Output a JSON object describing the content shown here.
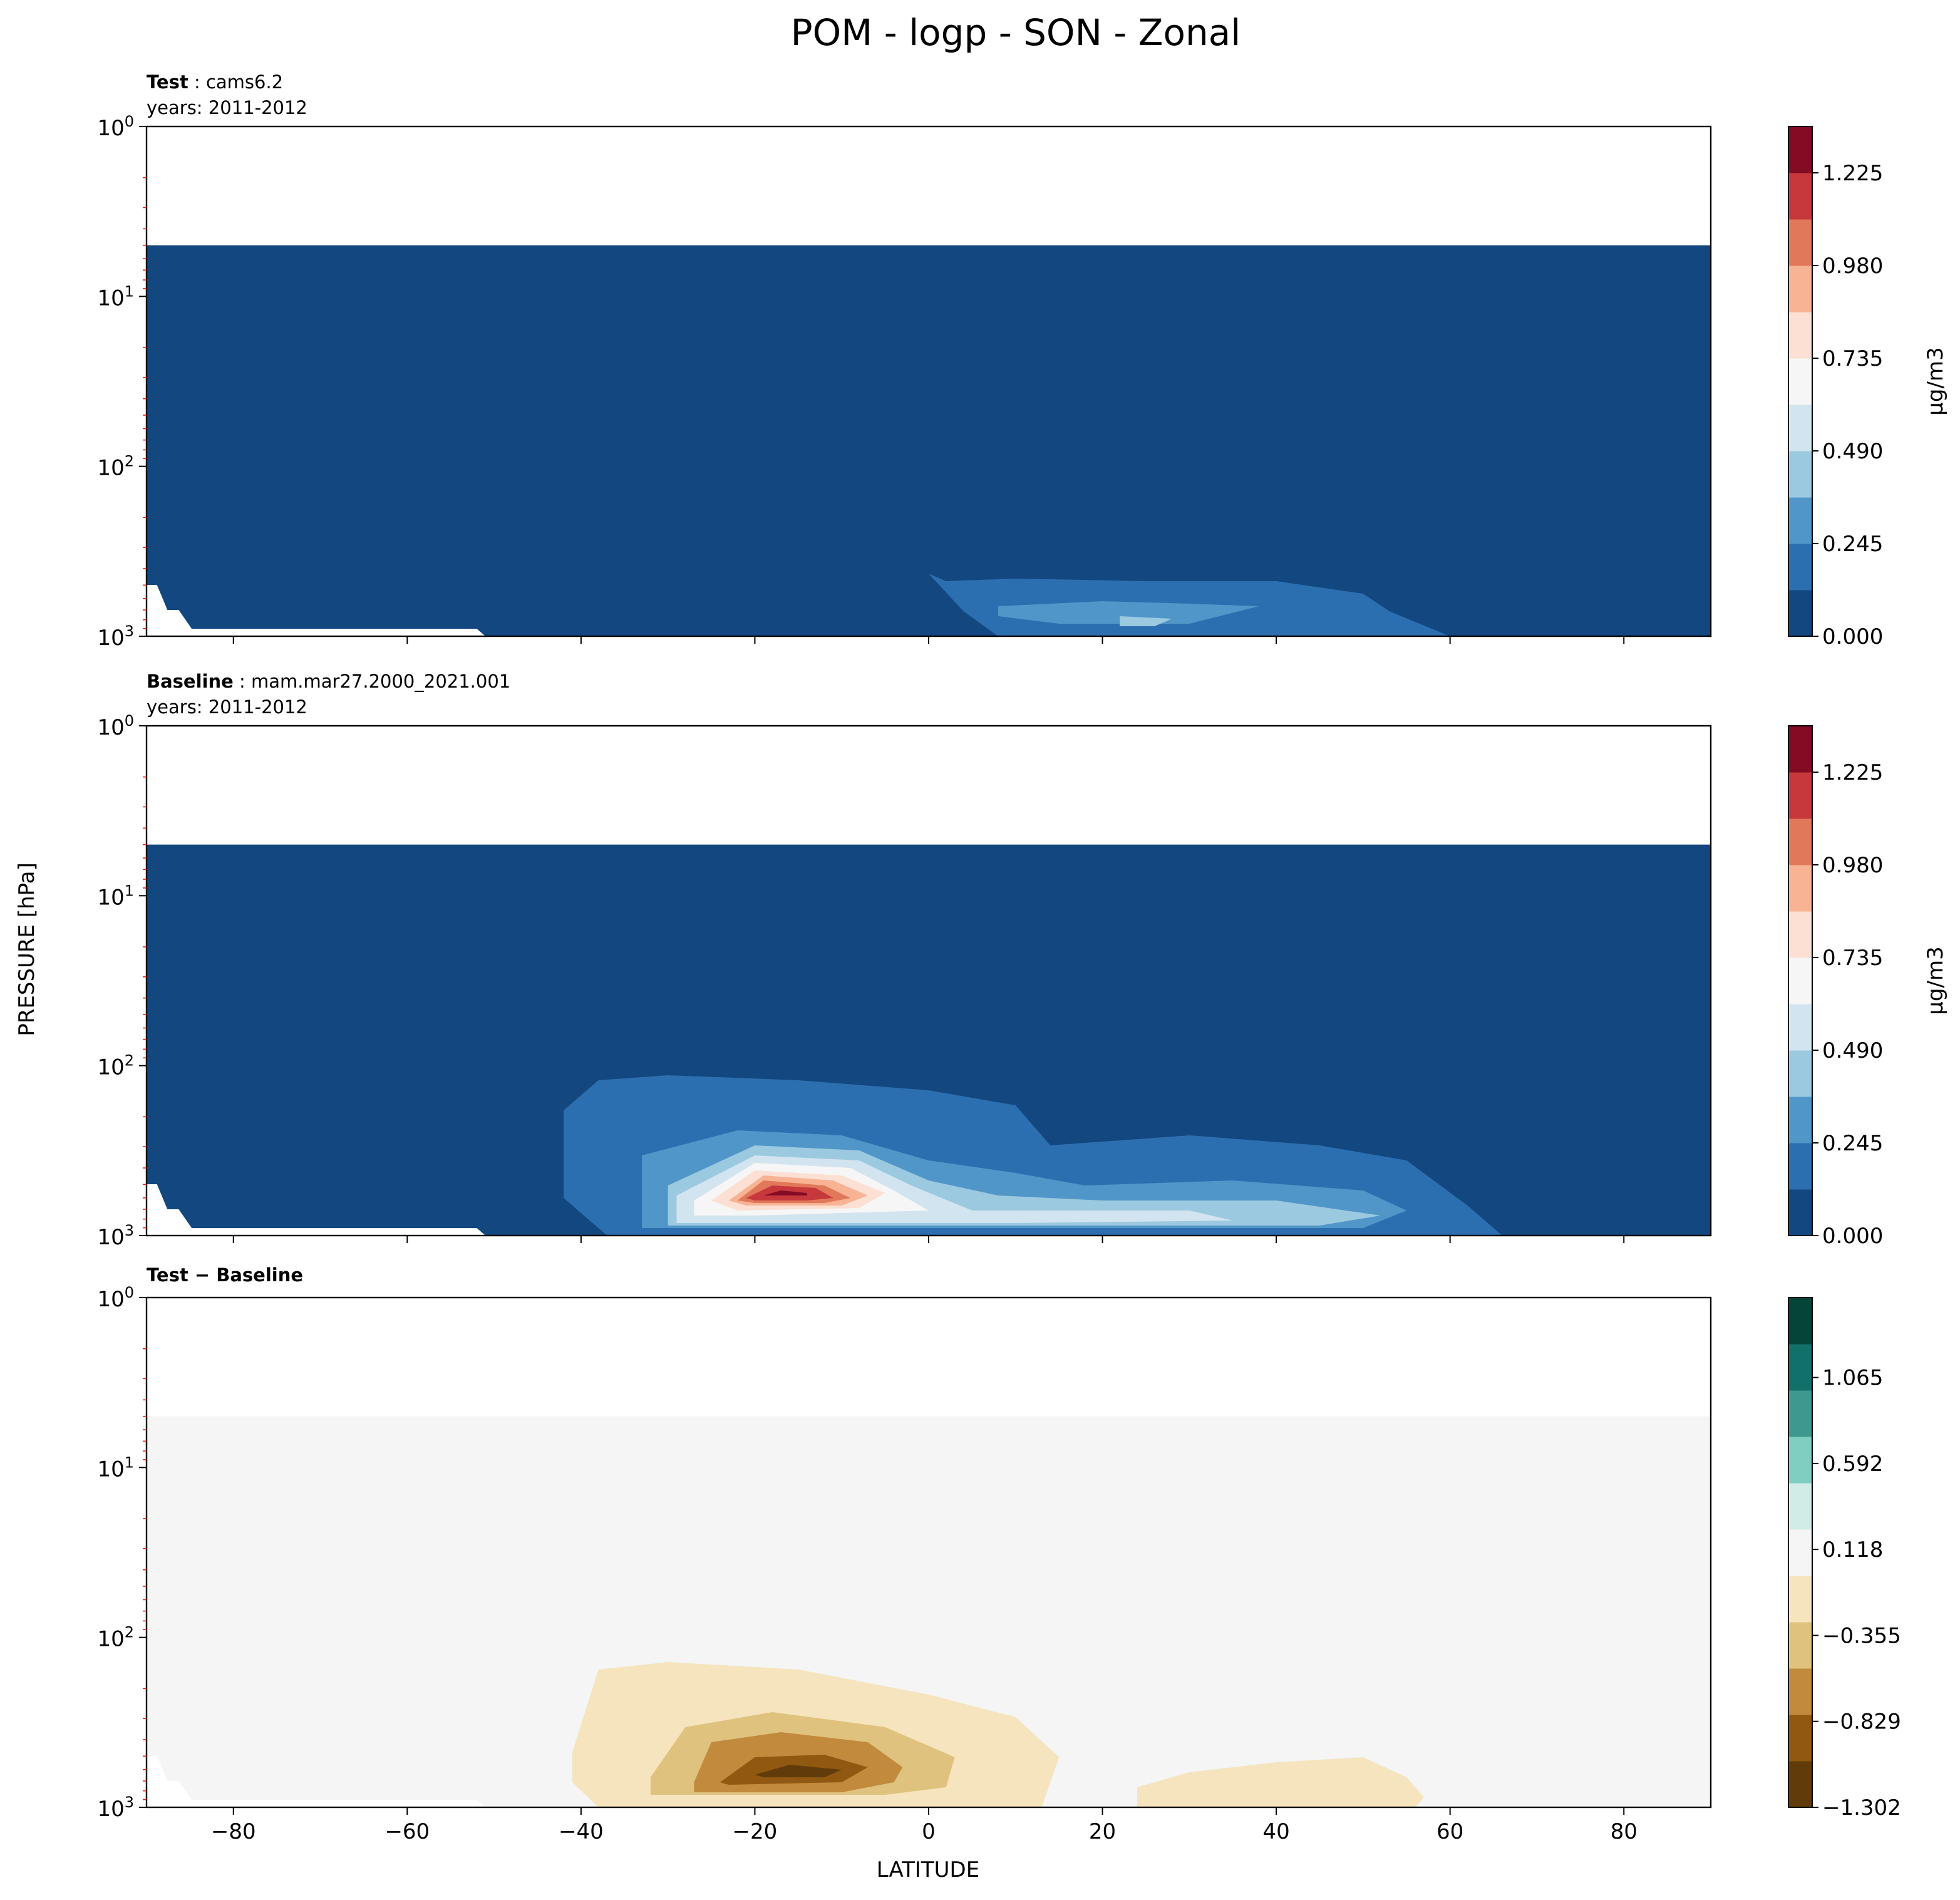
{
  "figure": {
    "title": "POM - logp - SON - Zonal",
    "ylabel": "PRESSURE [hPa]",
    "xlabel": "LATITUDE"
  },
  "chart_data": [
    {
      "type": "heatmap",
      "panel": "test",
      "title_bold": "Test",
      "title_rest": ": cams6.2",
      "subtitle": "years: 2011-2012",
      "x": {
        "label": "LATITUDE",
        "lim": [
          -90,
          90
        ],
        "ticks": [
          -80,
          -60,
          -40,
          -20,
          0,
          20,
          40,
          60,
          80
        ]
      },
      "y": {
        "label": "PRESSURE [hPa]",
        "scale": "log",
        "inverted": true,
        "lim": [
          1,
          1000
        ],
        "ticks": [
          "10^0",
          "10^1",
          "10^2",
          "10^3"
        ],
        "data_top_hPa": 5
      },
      "colorbar": {
        "cmap": "RdBu_r",
        "label": "μg/m3",
        "ticks": [
          "0.000",
          "0.245",
          "0.490",
          "0.735",
          "0.980",
          "1.225"
        ],
        "levels": [
          0.0,
          0.1225,
          0.245,
          0.3675,
          0.49,
          0.6125,
          0.735,
          0.8575,
          0.98,
          1.1025,
          1.225,
          1.3475
        ],
        "colors": [
          "#134780",
          "#2c6fb0",
          "#5096c8",
          "#9bc9e0",
          "#d1e4f0",
          "#f6f6f6",
          "#fbe0d3",
          "#f7b393",
          "#e17859",
          "#c6383c",
          "#830b24"
        ]
      },
      "fields": [
        {
          "level": 0.1225,
          "outline": [
            [
              0,
              -25
            ],
            [
              2,
              -22
            ],
            [
              10,
              -23
            ],
            [
              25,
              -22
            ],
            [
              40,
              -22
            ],
            [
              50,
              -17
            ],
            [
              53,
              -10
            ],
            [
              60,
              0
            ],
            [
              50,
              0
            ],
            [
              20,
              0
            ],
            [
              8,
              0
            ],
            [
              4,
              -10
            ]
          ]
        },
        {
          "level": 0.245,
          "outline": [
            [
              8,
              -12
            ],
            [
              20,
              -14
            ],
            [
              30,
              -13
            ],
            [
              38,
              -12
            ],
            [
              30,
              -5
            ],
            [
              15,
              -5
            ],
            [
              8,
              -8
            ]
          ]
        },
        {
          "level": 0.3675,
          "outline": [
            [
              22,
              -8
            ],
            [
              28,
              -7
            ],
            [
              26,
              -4
            ],
            [
              22,
              -4
            ]
          ]
        }
      ]
    },
    {
      "type": "heatmap",
      "panel": "baseline",
      "title_bold": "Baseline",
      "title_rest": ": mam.mar27.2000_2021.001",
      "subtitle": "years: 2011-2012",
      "x": {
        "label": "LATITUDE",
        "lim": [
          -90,
          90
        ],
        "ticks": [
          -80,
          -60,
          -40,
          -20,
          0,
          20,
          40,
          60,
          80
        ]
      },
      "y": {
        "label": "PRESSURE [hPa]",
        "scale": "log",
        "inverted": true,
        "lim": [
          1,
          1000
        ],
        "ticks": [
          "10^0",
          "10^1",
          "10^2",
          "10^3"
        ],
        "data_top_hPa": 5
      },
      "colorbar": {
        "cmap": "RdBu_r",
        "label": "μg/m3",
        "ticks": [
          "0.000",
          "0.245",
          "0.490",
          "0.735",
          "0.980",
          "1.225"
        ],
        "levels": [
          0.0,
          0.1225,
          0.245,
          0.3675,
          0.49,
          0.6125,
          0.735,
          0.8575,
          0.98,
          1.1025,
          1.225,
          1.3475
        ],
        "colors": [
          "#134780",
          "#2c6fb0",
          "#5096c8",
          "#9bc9e0",
          "#d1e4f0",
          "#f6f6f6",
          "#fbe0d3",
          "#f7b393",
          "#e17859",
          "#c6383c",
          "#830b24"
        ]
      },
      "fields": [
        {
          "level": 0.1225,
          "outline": [
            [
              -42,
              -50
            ],
            [
              -38,
              -62
            ],
            [
              -30,
              -64
            ],
            [
              -15,
              -62
            ],
            [
              0,
              -58
            ],
            [
              10,
              -52
            ],
            [
              14,
              -36
            ],
            [
              30,
              -40
            ],
            [
              45,
              -36
            ],
            [
              55,
              -30
            ],
            [
              62,
              -12
            ],
            [
              66,
              0
            ],
            [
              -37,
              0
            ],
            [
              -42,
              -15
            ]
          ]
        },
        {
          "level": 0.245,
          "outline": [
            [
              -33,
              -32
            ],
            [
              -22,
              -42
            ],
            [
              -10,
              -40
            ],
            [
              0,
              -30
            ],
            [
              10,
              -25
            ],
            [
              18,
              -20
            ],
            [
              35,
              -22
            ],
            [
              50,
              -18
            ],
            [
              55,
              -10
            ],
            [
              50,
              -3
            ],
            [
              -33,
              -3
            ]
          ]
        },
        {
          "level": 0.3675,
          "outline": [
            [
              -30,
              -20
            ],
            [
              -20,
              -36
            ],
            [
              -8,
              -34
            ],
            [
              0,
              -22
            ],
            [
              8,
              -16
            ],
            [
              20,
              -14
            ],
            [
              40,
              -14
            ],
            [
              52,
              -8
            ],
            [
              45,
              -4
            ],
            [
              -30,
              -4
            ]
          ]
        },
        {
          "level": 0.49,
          "outline": [
            [
              -29,
              -16
            ],
            [
              -20,
              -32
            ],
            [
              -8,
              -30
            ],
            [
              -2,
              -20
            ],
            [
              5,
              -10
            ],
            [
              20,
              -10
            ],
            [
              30,
              -10
            ],
            [
              35,
              -6
            ],
            [
              10,
              -5
            ],
            [
              -29,
              -5
            ]
          ]
        },
        {
          "level": 0.6125,
          "outline": [
            [
              -27,
              -14
            ],
            [
              -20,
              -29
            ],
            [
              -9,
              -27
            ],
            [
              -4,
              -18
            ],
            [
              0,
              -10
            ],
            [
              -20,
              -8
            ],
            [
              -27,
              -8
            ]
          ]
        },
        {
          "level": 0.735,
          "outline": [
            [
              -25,
              -14
            ],
            [
              -20,
              -26
            ],
            [
              -10,
              -24
            ],
            [
              -5,
              -17
            ],
            [
              -8,
              -11
            ],
            [
              -22,
              -10
            ]
          ]
        },
        {
          "level": 0.8575,
          "outline": [
            [
              -23,
              -14
            ],
            [
              -19,
              -24
            ],
            [
              -11,
              -22
            ],
            [
              -7,
              -16
            ],
            [
              -10,
              -12
            ],
            [
              -21,
              -12
            ]
          ]
        },
        {
          "level": 0.98,
          "outline": [
            [
              -22,
              -14
            ],
            [
              -19,
              -22
            ],
            [
              -12,
              -20
            ],
            [
              -9,
              -15
            ],
            [
              -12,
              -13
            ],
            [
              -20,
              -13
            ]
          ]
        },
        {
          "level": 1.1025,
          "outline": [
            [
              -21,
              -15
            ],
            [
              -18,
              -20
            ],
            [
              -13,
              -19
            ],
            [
              -11,
              -15
            ],
            [
              -14,
              -14
            ],
            [
              -20,
              -14
            ]
          ]
        },
        {
          "level": 1.225,
          "outline": [
            [
              -19,
              -16
            ],
            [
              -17,
              -18
            ],
            [
              -14,
              -17
            ],
            [
              -14,
              -16
            ]
          ]
        }
      ]
    },
    {
      "type": "heatmap",
      "panel": "difference",
      "title_bold": "Test − Baseline",
      "title_rest": "",
      "subtitle": "",
      "x": {
        "label": "LATITUDE",
        "lim": [
          -90,
          90
        ],
        "ticks": [
          -80,
          -60,
          -40,
          -20,
          0,
          20,
          40,
          60,
          80
        ]
      },
      "y": {
        "label": "PRESSURE [hPa]",
        "scale": "log",
        "inverted": true,
        "lim": [
          1,
          1000
        ],
        "ticks": [
          "10^0",
          "10^1",
          "10^2",
          "10^3"
        ],
        "data_top_hPa": 5
      },
      "colorbar": {
        "cmap": "BrBG",
        "label": "",
        "ticks": [
          "−1.302",
          "−0.829",
          "−0.355",
          "0.118",
          "0.592",
          "1.065"
        ],
        "levels": [
          -1.302,
          -1.1443,
          -0.9867,
          -0.829,
          -0.6713,
          -0.5137,
          -0.355,
          -0.1973,
          -0.0397,
          0.118,
          0.2757,
          0.4333,
          0.592,
          0.7497,
          0.9073,
          1.065,
          1.2227
        ],
        "colors": [
          "#613c0a",
          "#905811",
          "#c18a3d",
          "#dfc27d",
          "#f5e4bd",
          "#f4f5f4",
          "#f4f5f4",
          "#f4f5f4",
          "#f4f5f4",
          "#d1ece7",
          "#80cdc1",
          "#3f9890",
          "#12706a",
          "#0a5a4e",
          "#04453a",
          "#003c30"
        ],
        "band_colors": [
          "#613c0a",
          "#905811",
          "#c18a3d",
          "#dfc27d",
          "#f5e4bd",
          "#f4f5f4",
          "#d1ece7",
          "#80cdc1",
          "#3f9890",
          "#12706a",
          "#04453a"
        ]
      },
      "fields": [
        {
          "level": -0.1973,
          "outline": [
            [
              -41,
              -22
            ],
            [
              -38,
              -55
            ],
            [
              -30,
              -58
            ],
            [
              -15,
              -55
            ],
            [
              0,
              -45
            ],
            [
              10,
              -36
            ],
            [
              15,
              -20
            ],
            [
              13,
              0
            ],
            [
              -38,
              0
            ],
            [
              -41,
              -10
            ]
          ]
        },
        {
          "level": -0.1973,
          "outline": [
            [
              24,
              -8
            ],
            [
              30,
              -14
            ],
            [
              40,
              -18
            ],
            [
              50,
              -20
            ],
            [
              55,
              -12
            ],
            [
              57,
              -4
            ],
            [
              56,
              0
            ],
            [
              24,
              0
            ]
          ]
        },
        {
          "level": -0.5137,
          "outline": [
            [
              -32,
              -12
            ],
            [
              -28,
              -32
            ],
            [
              -18,
              -38
            ],
            [
              -5,
              -32
            ],
            [
              3,
              -20
            ],
            [
              2,
              -8
            ],
            [
              -5,
              -5
            ],
            [
              -32,
              -5
            ]
          ]
        },
        {
          "level": -0.829,
          "outline": [
            [
              -27,
              -10
            ],
            [
              -25,
              -26
            ],
            [
              -17,
              -30
            ],
            [
              -7,
              -26
            ],
            [
              -3,
              -16
            ],
            [
              -4,
              -10
            ],
            [
              -10,
              -6
            ],
            [
              -27,
              -6
            ]
          ]
        },
        {
          "level": -0.9867,
          "outline": [
            [
              -24,
              -10
            ],
            [
              -20,
              -20
            ],
            [
              -12,
              -21
            ],
            [
              -7,
              -16
            ],
            [
              -10,
              -10
            ],
            [
              -23,
              -9
            ]
          ]
        },
        {
          "level": -1.1443,
          "outline": [
            [
              -20,
              -13
            ],
            [
              -16,
              -17
            ],
            [
              -10,
              -15
            ],
            [
              -12,
              -12
            ],
            [
              -19,
              -12
            ]
          ]
        }
      ]
    }
  ]
}
